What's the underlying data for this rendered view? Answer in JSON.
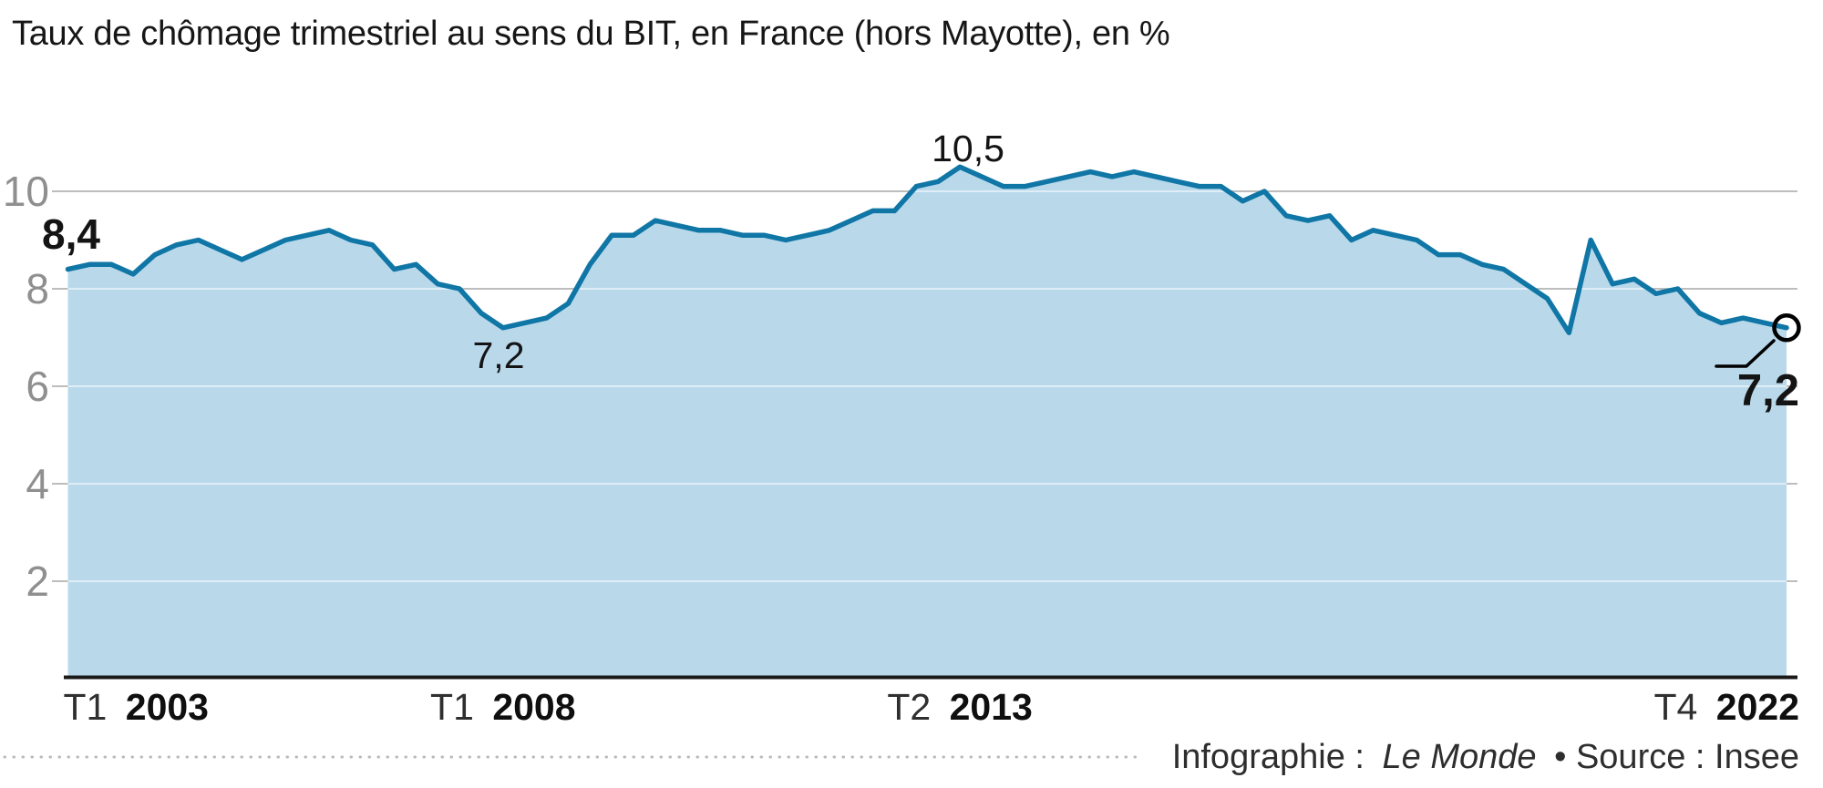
{
  "title": "Taux de chômage trimestriel au sens du BIT, en France (hors Mayotte), en %",
  "footer": {
    "prefix": "Infographie :",
    "brand": "Le Monde",
    "suffix": "• Source : Insee"
  },
  "chart_data": {
    "type": "area",
    "title": "Taux de chômage trimestriel au sens du BIT, en France (hors Mayotte), en %",
    "unit": "%",
    "periods": {
      "start": "T1 2003",
      "end": "T4 2022",
      "frequency": "trimestriel"
    },
    "ylim": [
      0,
      11
    ],
    "grid": "horizontal",
    "y_ticks": [
      10,
      8,
      6,
      4,
      2
    ],
    "x_ticks": [
      {
        "prefix": "T1",
        "year": "2003",
        "quarter_index": 0,
        "anchor": "start"
      },
      {
        "prefix": "T1",
        "year": "2008",
        "quarter_index": 20,
        "anchor": "middle"
      },
      {
        "prefix": "T2",
        "year": "2013",
        "quarter_index": 41,
        "anchor": "middle"
      },
      {
        "prefix": "T4",
        "year": "2022",
        "quarter_index": 79,
        "anchor": "end"
      }
    ],
    "values": [
      8.4,
      8.5,
      8.5,
      8.3,
      8.7,
      8.9,
      9.0,
      8.8,
      8.6,
      8.8,
      9.0,
      9.1,
      9.2,
      9.0,
      8.9,
      8.4,
      8.5,
      8.1,
      8.0,
      7.5,
      7.2,
      7.3,
      7.4,
      7.7,
      8.5,
      9.1,
      9.1,
      9.4,
      9.3,
      9.2,
      9.2,
      9.1,
      9.1,
      9.0,
      9.1,
      9.2,
      9.4,
      9.6,
      9.6,
      10.1,
      10.2,
      10.5,
      10.3,
      10.1,
      10.1,
      10.2,
      10.3,
      10.4,
      10.3,
      10.4,
      10.3,
      10.2,
      10.1,
      10.1,
      9.8,
      10.0,
      9.5,
      9.4,
      9.5,
      9.0,
      9.2,
      9.1,
      9.0,
      8.7,
      8.7,
      8.5,
      8.4,
      8.1,
      7.8,
      7.1,
      9.0,
      8.1,
      8.2,
      7.9,
      8.0,
      7.5,
      7.3,
      7.4,
      7.3,
      7.2
    ],
    "annotations": [
      {
        "label": "8,4",
        "quarter": "T1 2003",
        "value": 8.4,
        "emphasis": "bold"
      },
      {
        "label": "7,2",
        "quarter": "T1 2008",
        "value": 7.2,
        "emphasis": "regular"
      },
      {
        "label": "10,5",
        "quarter": "T2 2013",
        "value": 10.5,
        "emphasis": "regular"
      },
      {
        "label": "7,2",
        "quarter": "T4 2022",
        "value": 7.2,
        "emphasis": "bold",
        "marker": "circle"
      }
    ],
    "colors": {
      "line": "#0f76a6",
      "fill": "#b9d9eb"
    }
  }
}
